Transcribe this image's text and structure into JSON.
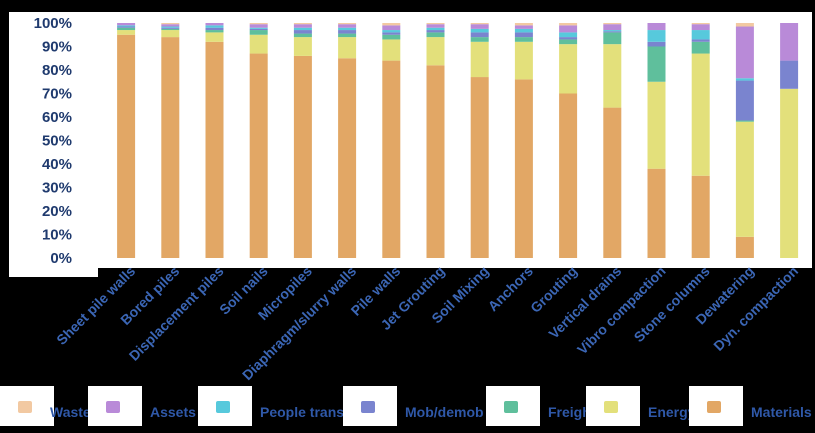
{
  "chart_data": {
    "type": "bar",
    "stacked": true,
    "normalized": true,
    "categories": [
      "Sheet pile walls",
      "Bored piles",
      "Displacement piles",
      "Soil nails",
      "Micropiles",
      "Diaphragm/slurry walls",
      "Pile walls",
      "Jet Grouting",
      "Soil Mixing",
      "Anchors",
      "Grouting",
      "Vertical drains",
      "Vibro compaction",
      "Stone columns",
      "Dewatering",
      "Dyn. compaction"
    ],
    "series": [
      {
        "name": "Materials",
        "color": "#e2a765",
        "values": [
          95,
          94,
          92,
          87,
          86,
          85,
          84,
          82,
          77,
          76,
          70,
          64,
          38,
          35,
          9,
          0
        ]
      },
      {
        "name": "Energy",
        "color": "#e3e07b",
        "values": [
          2,
          3,
          4,
          8,
          8,
          9,
          9,
          12,
          15,
          16,
          21,
          27,
          37,
          52,
          49,
          72
        ]
      },
      {
        "name": "Freight",
        "color": "#5fbf9c",
        "values": [
          1,
          0.5,
          1,
          2,
          1.5,
          1.5,
          2,
          2,
          2,
          2,
          2,
          5,
          15,
          5,
          0.5,
          0
        ]
      },
      {
        "name": "Mob/demob",
        "color": "#7a84cf",
        "values": [
          0.5,
          0.5,
          1,
          0.5,
          1.5,
          1.5,
          1,
          1,
          2,
          2,
          1,
          0.5,
          2,
          1,
          17,
          12
        ]
      },
      {
        "name": "People transp.",
        "color": "#57c9dc",
        "values": [
          0.5,
          0.5,
          1,
          0.5,
          1,
          1,
          1,
          1,
          1.5,
          1.5,
          2,
          0.5,
          5,
          4,
          1,
          0
        ]
      },
      {
        "name": "Assets",
        "color": "#b98ad8",
        "values": [
          1,
          1,
          1,
          1.5,
          1.5,
          1.5,
          2,
          1.5,
          2,
          1.5,
          3,
          2.5,
          3,
          2.5,
          22,
          16
        ]
      },
      {
        "name": "Waste",
        "color": "#f2c9a2",
        "values": [
          0,
          0.5,
          0,
          0.5,
          0.5,
          0.5,
          1,
          0.5,
          0.5,
          1,
          1,
          0.5,
          0,
          0.5,
          1.5,
          0
        ]
      }
    ],
    "ylim": [
      0,
      100
    ],
    "yticks": [
      "0%",
      "10%",
      "20%",
      "30%",
      "40%",
      "50%",
      "60%",
      "70%",
      "80%",
      "90%",
      "100%"
    ],
    "legend_order": [
      "Waste",
      "Assets",
      "People transp.",
      "Mob/demob",
      "Freight",
      "Energy",
      "Materials"
    ],
    "legend_position": "bottom",
    "title": "",
    "xlabel": "",
    "ylabel": ""
  }
}
